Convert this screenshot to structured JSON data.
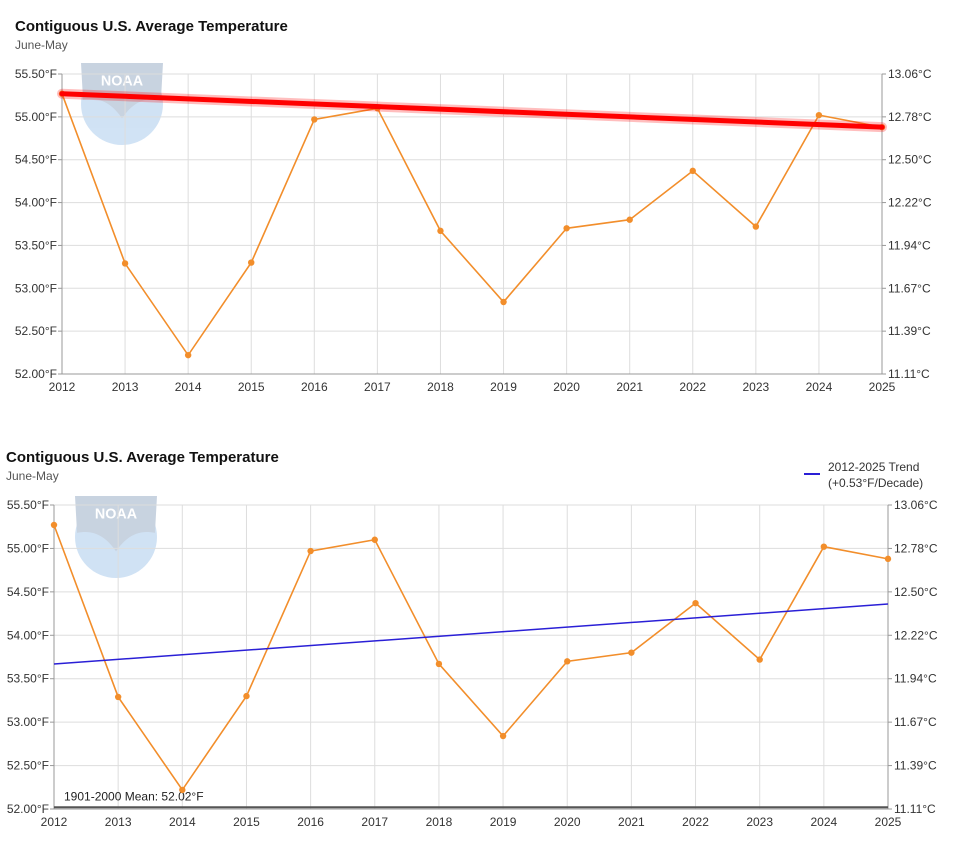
{
  "chart_data": [
    {
      "type": "line",
      "title": "Contiguous U.S. Average Temperature",
      "subtitle": "June-May",
      "x": [
        2012,
        2013,
        2014,
        2015,
        2016,
        2017,
        2018,
        2019,
        2020,
        2021,
        2022,
        2023,
        2024,
        2025
      ],
      "series": [
        {
          "values": [
            55.27,
            53.29,
            52.22,
            53.3,
            54.97,
            55.1,
            53.67,
            52.84,
            53.7,
            53.8,
            54.37,
            53.72,
            55.02,
            54.88
          ],
          "color": "#f28e2b"
        }
      ],
      "overlay_line": {
        "x": [
          2012,
          2025
        ],
        "y": [
          55.27,
          54.88
        ],
        "color": "#ff0000",
        "style": "thick-glow"
      },
      "ylim": [
        52.0,
        55.5
      ],
      "yticks_left": [
        "52.00°F",
        "52.50°F",
        "53.00°F",
        "53.50°F",
        "54.00°F",
        "54.50°F",
        "55.00°F",
        "55.50°F"
      ],
      "yticks_right": [
        "11.11°C",
        "11.39°C",
        "11.67°C",
        "11.94°C",
        "12.22°C",
        "12.50°C",
        "12.78°C",
        "13.06°C"
      ],
      "xticks": [
        "2012",
        "2013",
        "2014",
        "2015",
        "2016",
        "2017",
        "2018",
        "2019",
        "2020",
        "2021",
        "2022",
        "2023",
        "2024",
        "2025"
      ],
      "grid": true,
      "watermark": "NOAA"
    },
    {
      "type": "line",
      "title": "Contiguous U.S. Average Temperature",
      "subtitle": "June-May",
      "x": [
        2012,
        2013,
        2014,
        2015,
        2016,
        2017,
        2018,
        2019,
        2020,
        2021,
        2022,
        2023,
        2024,
        2025
      ],
      "series": [
        {
          "values": [
            55.27,
            53.29,
            52.22,
            53.3,
            54.97,
            55.1,
            53.67,
            52.84,
            53.7,
            53.8,
            54.37,
            53.72,
            55.02,
            54.88
          ],
          "color": "#f28e2b"
        },
        {
          "name": "2012-2025 Trend",
          "name_line2": "(+0.53°F/Decade)",
          "x": [
            2012,
            2025
          ],
          "values": [
            53.67,
            54.36
          ],
          "color": "#2a1fd6"
        }
      ],
      "mean_line": {
        "label": "1901-2000 Mean: 52.02°F",
        "value": 52.02
      },
      "ylim": [
        52.0,
        55.5
      ],
      "yticks_left": [
        "52.00°F",
        "52.50°F",
        "53.00°F",
        "53.50°F",
        "54.00°F",
        "54.50°F",
        "55.00°F",
        "55.50°F"
      ],
      "yticks_right": [
        "11.11°C",
        "11.39°C",
        "11.67°C",
        "11.94°C",
        "12.22°C",
        "12.50°C",
        "12.78°C",
        "13.06°C"
      ],
      "xticks": [
        "2012",
        "2013",
        "2014",
        "2015",
        "2016",
        "2017",
        "2018",
        "2019",
        "2020",
        "2021",
        "2022",
        "2023",
        "2024",
        "2025"
      ],
      "grid": true,
      "legend": "top-right",
      "watermark": "NOAA"
    }
  ]
}
